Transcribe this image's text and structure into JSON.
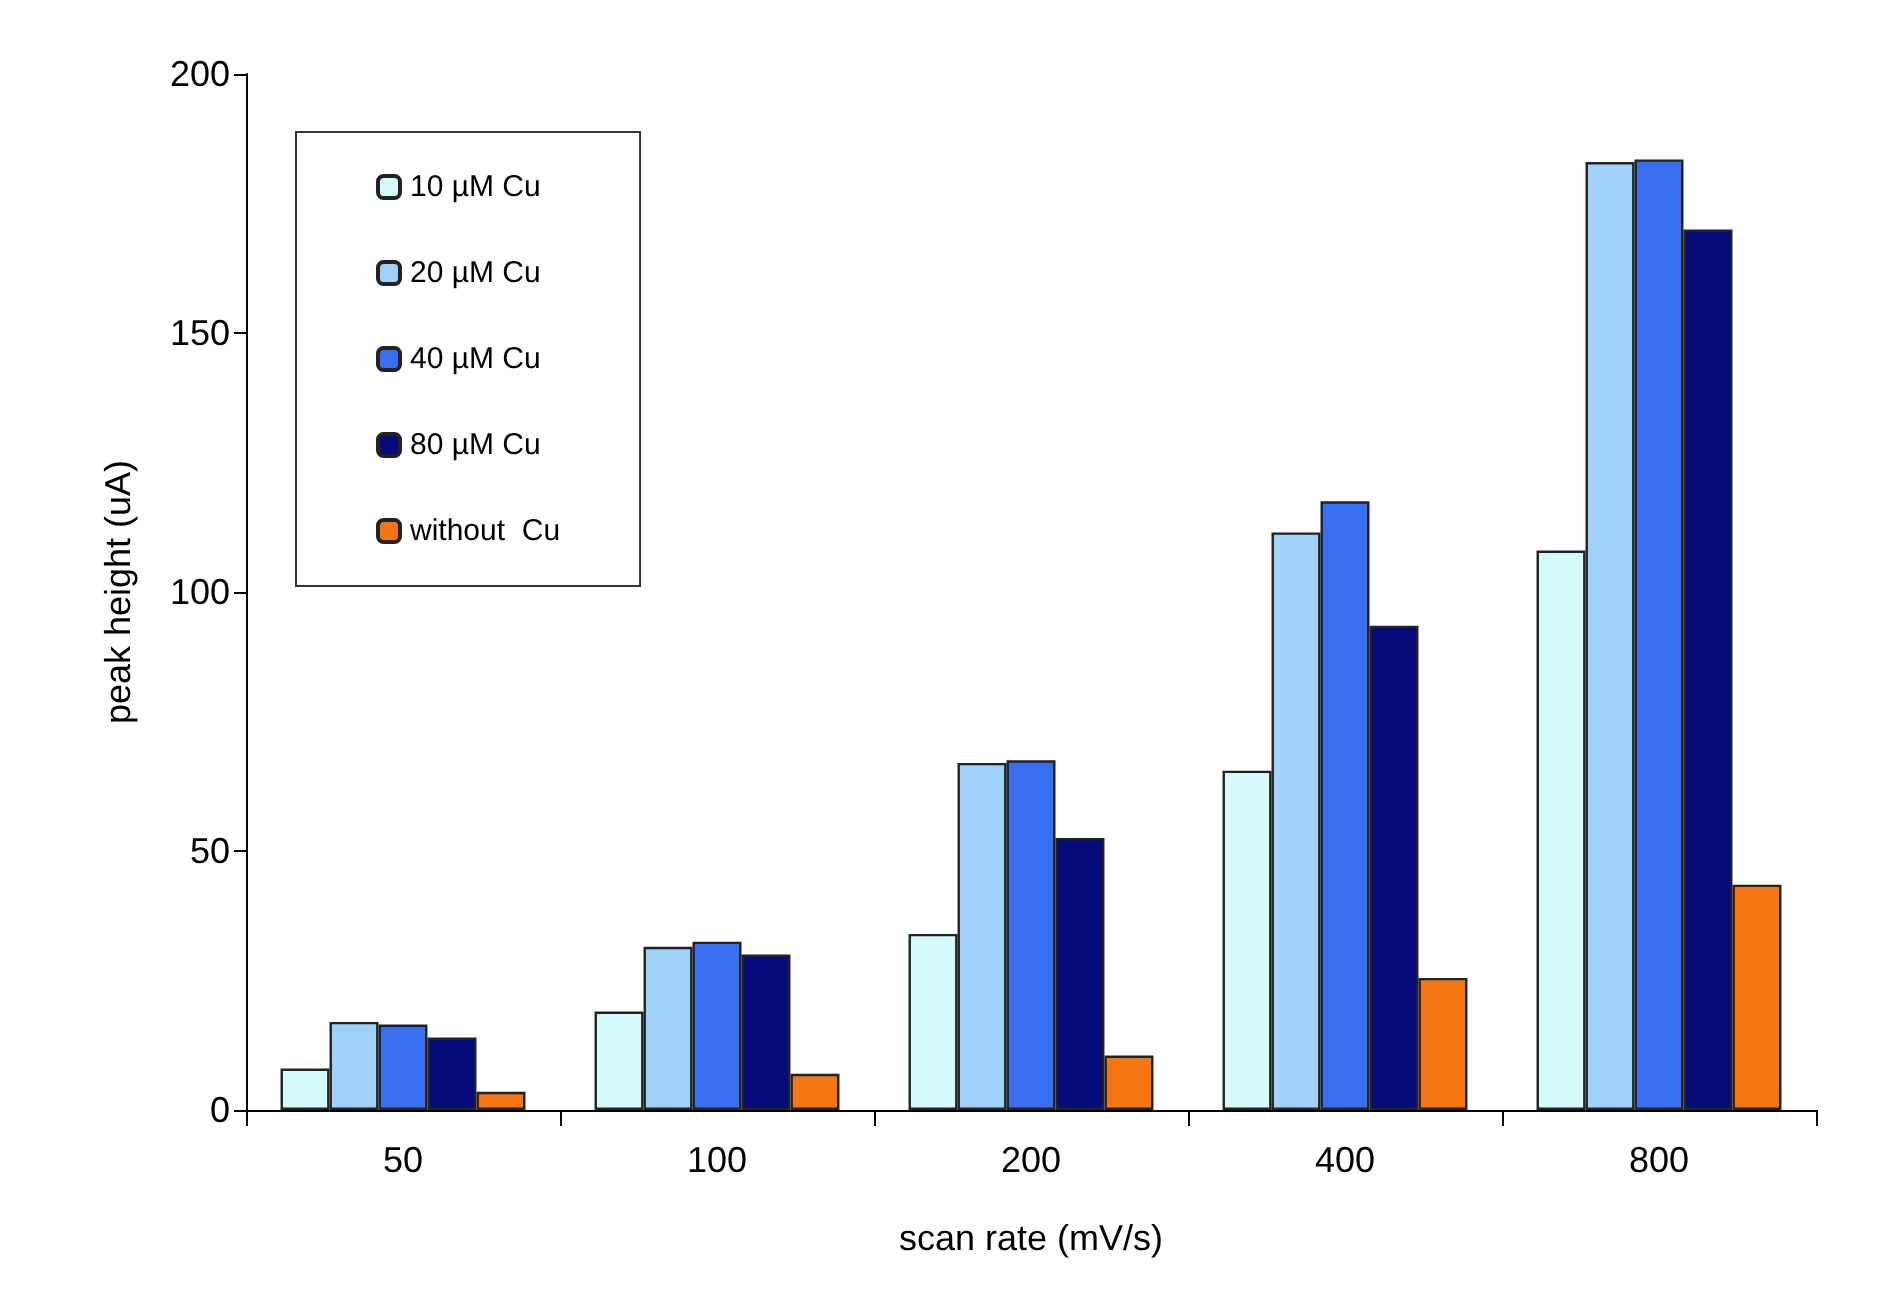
{
  "chart_data": {
    "type": "bar",
    "xlabel": "scan rate (mV/s)",
    "ylabel": "peak height (uA)",
    "categories": [
      "50",
      "100",
      "200",
      "400",
      "800"
    ],
    "series": [
      {
        "name": "10 µM Cu",
        "color": "#d4fafa",
        "values": [
          8,
          19,
          34,
          65.5,
          108
        ]
      },
      {
        "name": "20 µM Cu",
        "color": "#9fd2f8",
        "values": [
          17,
          31.5,
          67,
          111.5,
          183
        ]
      },
      {
        "name": "40 µM Cu",
        "color": "#3a6ef0",
        "values": [
          16.5,
          32.5,
          67.5,
          117.5,
          183.5
        ]
      },
      {
        "name": "80 µM Cu",
        "color": "#070a7a",
        "values": [
          14,
          30,
          52.5,
          93.5,
          170
        ]
      },
      {
        "name": "without  Cu",
        "color": "#f57510",
        "values": [
          3.5,
          7,
          10.5,
          25.5,
          43.5
        ]
      }
    ],
    "ylim": [
      0,
      200
    ],
    "yticks": [
      0,
      50,
      100,
      150,
      200
    ],
    "grid": false,
    "legend": "top left"
  }
}
